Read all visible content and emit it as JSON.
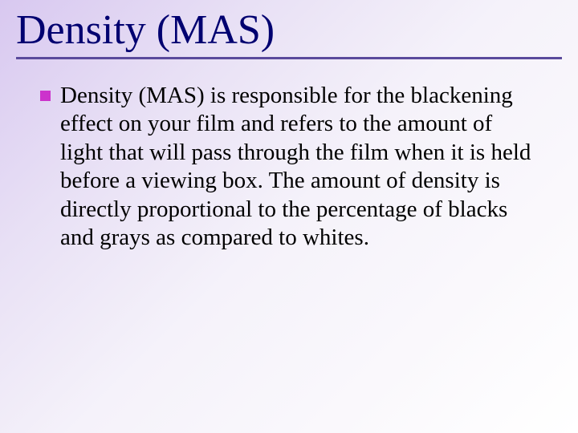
{
  "slide": {
    "title": "Density (MAS)",
    "title_color": "#000070",
    "title_fontsize": 52,
    "underline_color": "#5a4a9c",
    "underline_height": 3,
    "background_gradient": {
      "start": "#d8c8f0",
      "end": "#ffffff",
      "angle": 135
    },
    "bullets": [
      {
        "marker_color": "#cc33cc",
        "marker_size": 13,
        "text": "Density (MAS) is responsible for the blackening effect on your film and refers to the amount of light that will pass through the film when it is held before a viewing box. The amount of density is directly proportional to the percentage of blacks and grays as compared to whites.",
        "text_color": "#000000",
        "fontsize": 29
      }
    ]
  }
}
